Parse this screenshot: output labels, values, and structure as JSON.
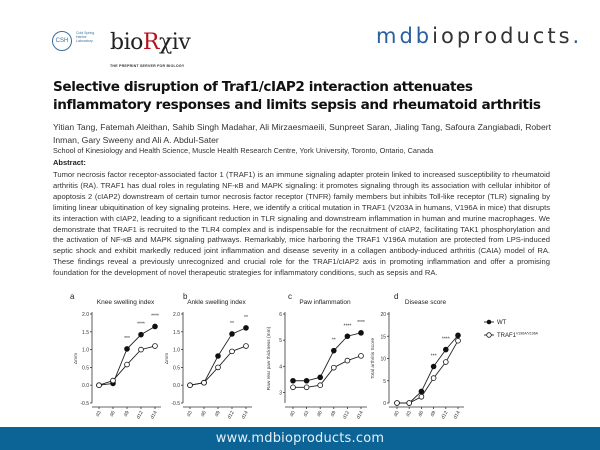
{
  "header": {
    "csh_seal": "CSH",
    "csh_text": "Cold Spring Harbor Laboratory",
    "biorxiv_logo_left": "bio",
    "biorxiv_logo_r": "R",
    "biorxiv_logo_right": "χiv",
    "biorxiv_tagline": "THE PREPRINT SERVER FOR BIOLOGY",
    "mdb_logo_left": "mdb",
    "mdb_logo_bio": "i",
    "mdb_logo_right": "oproducts",
    "mdb_logo_dot": "."
  },
  "paper": {
    "title": "Selective disruption of Traf1/cIAP2 interaction attenuates inflammatory responses and limits sepsis and rheumatoid arthritis",
    "authors": "Yitian Tang, Fatemah Aleithan, Sahib Singh Madahar, Ali Mirzaesmaeili, Sunpreet Saran, Jialing Tang, Safoura Zangiabadi, Robert Inman, Gary Sweeny and Ali A. Abdul-Sater",
    "affiliation": "School of Kinesiology and Health Science, Muscle Health Research Centre, York University, Toronto, Ontario, Canada",
    "abstract_label": "Abstract:",
    "abstract": "Tumor necrosis factor receptor-associated factor 1 (TRAF1) is an immune signaling adapter protein linked to increased susceptibility to rheumatoid arthritis (RA). TRAF1 has dual roles in regulating NF-κB and MAPK signaling: it promotes signaling through its association with cellular inhibitor of apoptosis 2 (cIAP2) downstream of certain tumor necrosis factor receptor (TNFR) family members but inhibits Toll-like receptor (TLR) signaling by limiting linear ubiquitination of key signaling proteins. Here, we identify a critical mutation in TRAF1 (V203A in humans, V196A in mice) that disrupts its interaction with cIAP2, leading to a significant reduction in TLR signaling and downstream inflammation in human and murine macrophages. We demonstrate that TRAF1 is recruited to the TLR4 complex and is indispensable for the recruitment of cIAP2, facilitating TAK1 phosphorylation and the activation of NF-κB and MAPK signaling pathways. Remarkably, mice harboring the TRAF1 V196A mutation are protected from LPS-induced septic shock and exhibit markedly reduced joint inflammation and disease severity in a collagen antibody-induced arthritis (CAIA) model of RA. These findings reveal a previously unrecognized and crucial role for the TRAF1/cIAP2 axis in promoting inflammation and offer a promising foundation for the development of novel therapeutic strategies for inflammatory conditions, such as sepsis and RA."
  },
  "legend": {
    "wt": "WT",
    "mut": "TRAF1",
    "mut_sup": "V196A/V196A"
  },
  "chart_data": [
    {
      "type": "line",
      "panel": "a",
      "title": "Knee swelling index",
      "ylabel": "Δmm",
      "categories": [
        "d3",
        "d6",
        "d9",
        "d12",
        "d14"
      ],
      "ylim": [
        -0.5,
        2.0
      ],
      "yticks": [
        "-0.5",
        "0.0",
        "0.5",
        "1.0",
        "1.5",
        "2.0"
      ],
      "series": [
        {
          "name": "WT",
          "values": [
            0,
            0.05,
            1.02,
            1.42,
            1.65
          ]
        },
        {
          "name": "TRAF1 V196A/V196A",
          "values": [
            0,
            0.13,
            0.58,
            1.0,
            1.1
          ]
        }
      ],
      "significance": [
        "",
        "",
        "***",
        "****",
        "****"
      ]
    },
    {
      "type": "line",
      "panel": "b",
      "title": "Ankle swelling index",
      "ylabel": "Δmm",
      "categories": [
        "d3",
        "d6",
        "d9",
        "d12",
        "d14"
      ],
      "ylim": [
        -0.5,
        2.0
      ],
      "yticks": [
        "-0.5",
        "0.0",
        "0.5",
        "1.0",
        "1.5",
        "2.0"
      ],
      "series": [
        {
          "name": "WT",
          "values": [
            0,
            0.07,
            0.82,
            1.44,
            1.61
          ]
        },
        {
          "name": "TRAF1 V196A/V196A",
          "values": [
            0,
            0.07,
            0.5,
            0.95,
            1.1
          ]
        }
      ],
      "significance": [
        "",
        "",
        "",
        "**",
        "**"
      ]
    },
    {
      "type": "line",
      "panel": "c",
      "title": "Paw inflammation",
      "ylabel": "Raw rear paw thickness (mm)",
      "categories": [
        "d0",
        "d3",
        "d6",
        "d9",
        "d12",
        "d14"
      ],
      "ylim": [
        2.6,
        6
      ],
      "yticks": [
        "3",
        "4",
        "5",
        "6"
      ],
      "series": [
        {
          "name": "WT",
          "values": [
            3.45,
            3.45,
            3.58,
            4.6,
            5.15,
            5.28
          ]
        },
        {
          "name": "TRAF1 V196A/V196A",
          "values": [
            3.2,
            3.2,
            3.28,
            3.95,
            4.22,
            4.4
          ]
        }
      ],
      "significance": [
        "",
        "",
        "",
        "**",
        "****",
        "****"
      ]
    },
    {
      "type": "line",
      "panel": "d",
      "title": "Disease score",
      "ylabel": "Total arthritis Score",
      "categories": [
        "d0",
        "d3",
        "d6",
        "d9",
        "d12",
        "d14"
      ],
      "ylim": [
        0,
        20
      ],
      "yticks": [
        "0",
        "5",
        "10",
        "15",
        "20"
      ],
      "series": [
        {
          "name": "WT",
          "values": [
            0,
            0,
            2.6,
            8.2,
            12,
            15.2
          ]
        },
        {
          "name": "TRAF1 V196A/V196A",
          "values": [
            0,
            0,
            1.4,
            5.6,
            9.2,
            14
          ]
        }
      ],
      "significance": [
        "",
        "",
        "",
        "***",
        "****",
        ""
      ]
    }
  ],
  "footer": {
    "url": "www.mdbioproducts.com"
  },
  "colors": {
    "footer": "#0b6396",
    "biorxiv_r": "#b5121b",
    "mdb_blue": "#2a5f9e"
  }
}
